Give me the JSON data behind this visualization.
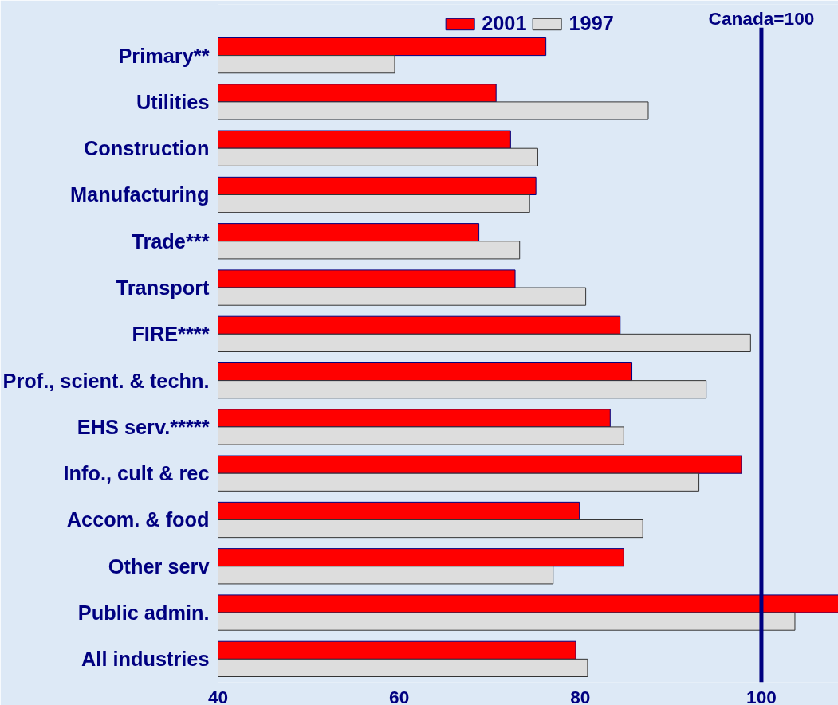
{
  "chart_data": {
    "type": "bar",
    "orientation": "horizontal",
    "categories": [
      "Primary**",
      "Utilities",
      "Construction",
      "Manufacturing",
      "Trade***",
      "Transport",
      "FIRE****",
      "Prof., scient. & techn.",
      "EHS serv.*****",
      "Info., cult & rec",
      "Accom. & food",
      "Other serv",
      "Public admin.",
      "All industries"
    ],
    "series": [
      {
        "name": "2001",
        "color": "#ff0000",
        "values": [
          76.2,
          70.7,
          72.3,
          75.1,
          68.8,
          72.8,
          84.4,
          85.7,
          83.3,
          97.8,
          79.9,
          84.8,
          108.5,
          79.5
        ]
      },
      {
        "name": "1997",
        "color": "#dddddd",
        "values": [
          59.5,
          87.5,
          75.3,
          74.4,
          73.3,
          80.6,
          98.8,
          93.9,
          84.8,
          93.1,
          86.9,
          77.0,
          103.7,
          80.8
        ]
      }
    ],
    "xlim": [
      40,
      108.5
    ],
    "xticks": [
      40,
      60,
      80,
      100
    ],
    "grid": "x",
    "legend": "top",
    "ref_lines": [
      {
        "axis": "x",
        "value": 100,
        "label": "Canada=100",
        "color": "#000080"
      }
    ]
  }
}
